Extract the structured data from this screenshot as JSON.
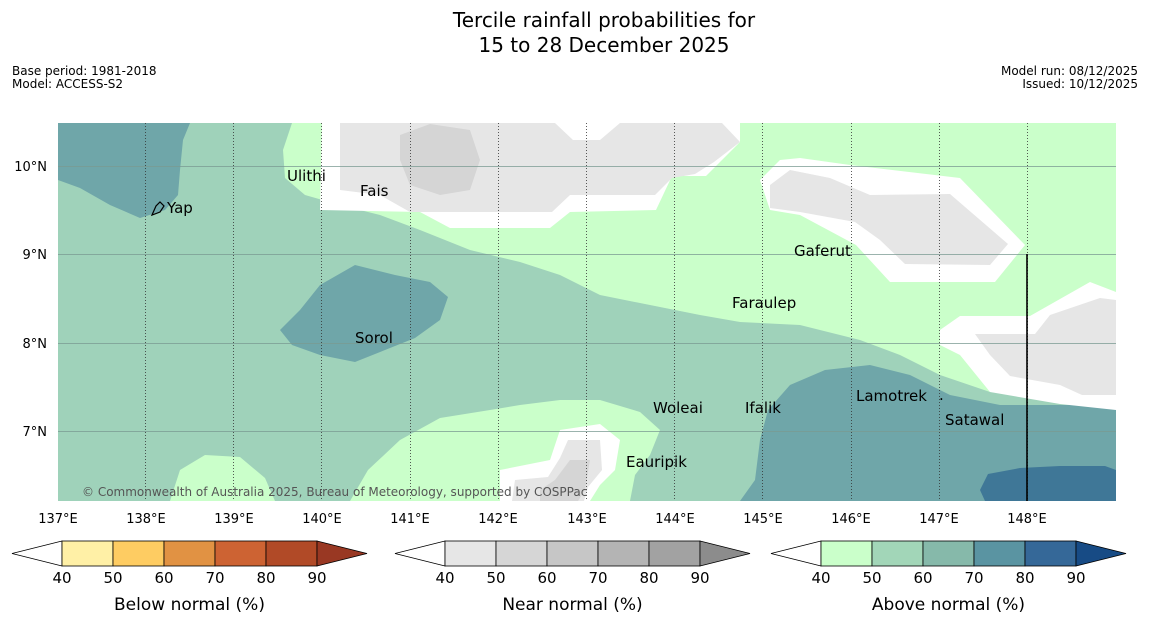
{
  "title_line1": "Tercile rainfall probabilities for",
  "title_line2": "15 to 28 December 2025",
  "meta_left": {
    "base_period": "Base period: 1981-2018",
    "model": "Model: ACCESS-S2"
  },
  "meta_right": {
    "model_run": "Model run: 08/12/2025",
    "issued": "Issued: 10/12/2025"
  },
  "copyright": "© Commonwealth of Australia 2025, Bureau of Meteorology, supported by COSPPac",
  "axes": {
    "lon_labels": [
      "137°E",
      "138°E",
      "139°E",
      "140°E",
      "141°E",
      "142°E",
      "143°E",
      "144°E",
      "145°E",
      "146°E",
      "147°E",
      "148°E"
    ],
    "lat_labels": [
      "10°N",
      "9°N",
      "8°N",
      "7°N"
    ]
  },
  "places": [
    {
      "name": "Ulithi"
    },
    {
      "name": "Fais"
    },
    {
      "name": "Yap"
    },
    {
      "name": "Gaferut"
    },
    {
      "name": "Faraulep"
    },
    {
      "name": "Sorol"
    },
    {
      "name": "Lamotrek"
    },
    {
      "name": "Woleai"
    },
    {
      "name": "Ifalik"
    },
    {
      "name": "Satawal"
    },
    {
      "name": "Eauripik"
    }
  ],
  "legend": {
    "ticks": [
      "40",
      "50",
      "60",
      "70",
      "80",
      "90"
    ],
    "bars": [
      {
        "title": "Below normal (%)",
        "colors": [
          "#fff0a6",
          "#fecc62",
          "#e19243",
          "#cd6333",
          "#b14a27"
        ],
        "end_color": "#993823"
      },
      {
        "title": "Near normal (%)",
        "colors": [
          "#e6e6e6",
          "#d6d6d6",
          "#c6c6c6",
          "#b4b4b4",
          "#a2a2a2"
        ],
        "end_color": "#8c8c8c"
      },
      {
        "title": "Above normal (%)",
        "colors": [
          "#caffca",
          "#a2d6b8",
          "#86b9aa",
          "#5a94a2",
          "#356898"
        ],
        "end_color": "#174b85"
      }
    ]
  }
}
